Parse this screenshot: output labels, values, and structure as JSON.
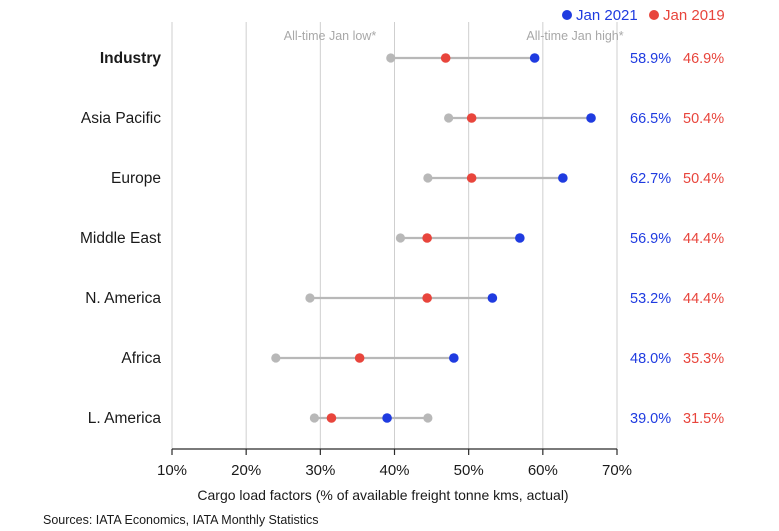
{
  "chart_data": {
    "type": "dot_range",
    "categories": [
      "Industry",
      "Asia Pacific",
      "Europe",
      "Middle East",
      "N. America",
      "Africa",
      "L. America"
    ],
    "bold_categories": [
      "Industry"
    ],
    "series": [
      {
        "name": "Jan 2021",
        "color": "#1f3be0",
        "values": [
          58.9,
          66.5,
          62.7,
          56.9,
          53.2,
          48.0,
          39.0
        ],
        "labels": [
          "58.9%",
          "66.5%",
          "62.7%",
          "56.9%",
          "53.2%",
          "48.0%",
          "39.0%"
        ]
      },
      {
        "name": "Jan 2019",
        "color": "#e8453c",
        "values": [
          46.9,
          50.4,
          50.4,
          44.4,
          44.4,
          35.3,
          31.5
        ],
        "labels": [
          "46.9%",
          "50.4%",
          "50.4%",
          "44.4%",
          "44.4%",
          "35.3%",
          "31.5%"
        ]
      }
    ],
    "range": {
      "low": [
        39.5,
        47.3,
        44.5,
        40.8,
        28.6,
        24.0,
        29.2
      ],
      "high": [
        58.9,
        66.5,
        62.7,
        56.9,
        53.2,
        48.0,
        44.5
      ],
      "color": "#b8b8b8",
      "low_label": "All-time Jan low*",
      "high_label": "All-time Jan high*"
    },
    "x_ticks": [
      "10%",
      "20%",
      "30%",
      "40%",
      "50%",
      "60%",
      "70%"
    ],
    "xlim": [
      10,
      70
    ],
    "xlabel": "Cargo load factors (% of available freight tonne kms, actual)",
    "grid": true,
    "legend": "top-right"
  },
  "footer": {
    "source": "Sources: IATA Economics, IATA Monthly Statistics"
  }
}
